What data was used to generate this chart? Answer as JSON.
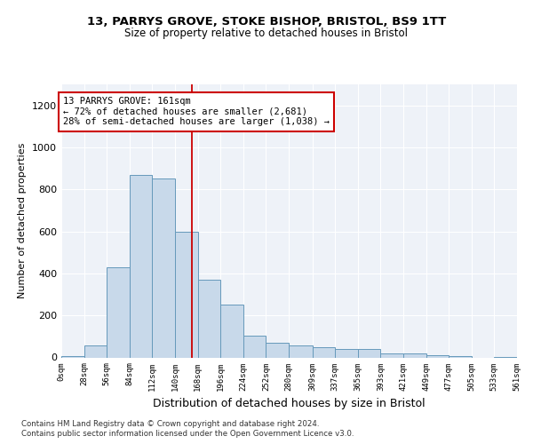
{
  "title_line1": "13, PARRYS GROVE, STOKE BISHOP, BRISTOL, BS9 1TT",
  "title_line2": "Size of property relative to detached houses in Bristol",
  "xlabel": "Distribution of detached houses by size in Bristol",
  "ylabel": "Number of detached properties",
  "bar_color": "#c8d9ea",
  "bar_edge_color": "#6699bb",
  "background_color": "#eef2f8",
  "annotation_line_color": "#cc0000",
  "annotation_box_color": "#cc0000",
  "footer_line1": "Contains HM Land Registry data © Crown copyright and database right 2024.",
  "footer_line2": "Contains public sector information licensed under the Open Government Licence v3.0.",
  "annotation_text": "13 PARRYS GROVE: 161sqm\n← 72% of detached houses are smaller (2,681)\n28% of semi-detached houses are larger (1,038) →",
  "property_size": 161,
  "bin_edges": [
    0,
    28,
    56,
    84,
    112,
    140,
    168,
    196,
    224,
    252,
    280,
    309,
    337,
    365,
    393,
    421,
    449,
    477,
    505,
    533,
    561
  ],
  "bar_heights": [
    5,
    55,
    430,
    870,
    850,
    600,
    370,
    250,
    105,
    70,
    55,
    50,
    40,
    40,
    20,
    18,
    12,
    5,
    0,
    3
  ],
  "ylim": [
    0,
    1300
  ],
  "yticks": [
    0,
    200,
    400,
    600,
    800,
    1000,
    1200
  ]
}
